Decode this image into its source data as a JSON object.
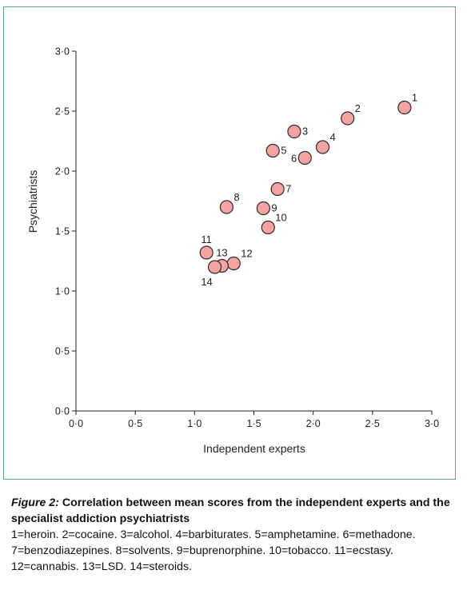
{
  "chart_data": {
    "type": "scatter",
    "xlabel": "Independent experts",
    "ylabel": "Psychiatrists",
    "xlim": [
      0,
      3
    ],
    "ylim": [
      0,
      3
    ],
    "x_ticks": [
      "0·0",
      "0·5",
      "1·0",
      "1·5",
      "2·0",
      "2·5",
      "3·0"
    ],
    "y_ticks": [
      "0·0",
      "0·5",
      "1·0",
      "1·5",
      "2·0",
      "2·5",
      "3·0"
    ],
    "tick_values": [
      0,
      0.5,
      1.0,
      1.5,
      2.0,
      2.5,
      3.0
    ],
    "grid": false,
    "marker_color": "#f4a3a0",
    "marker_edge": "#2b2b2b",
    "points": [
      {
        "label": "1",
        "x": 2.77,
        "y": 2.53,
        "label_pos": "upper-right"
      },
      {
        "label": "2",
        "x": 2.29,
        "y": 2.44,
        "label_pos": "upper-right"
      },
      {
        "label": "3",
        "x": 1.84,
        "y": 2.33,
        "label_pos": "right"
      },
      {
        "label": "4",
        "x": 2.08,
        "y": 2.2,
        "label_pos": "upper-right"
      },
      {
        "label": "5",
        "x": 1.66,
        "y": 2.17,
        "label_pos": "right"
      },
      {
        "label": "6",
        "x": 1.93,
        "y": 2.11,
        "label_pos": "left"
      },
      {
        "label": "7",
        "x": 1.7,
        "y": 1.85,
        "label_pos": "right"
      },
      {
        "label": "8",
        "x": 1.27,
        "y": 1.7,
        "label_pos": "upper-right"
      },
      {
        "label": "9",
        "x": 1.58,
        "y": 1.69,
        "label_pos": "right"
      },
      {
        "label": "10",
        "x": 1.62,
        "y": 1.53,
        "label_pos": "upper-right"
      },
      {
        "label": "11",
        "x": 1.1,
        "y": 1.32,
        "label_pos": "above"
      },
      {
        "label": "12",
        "x": 1.33,
        "y": 1.23,
        "label_pos": "upper-right"
      },
      {
        "label": "13",
        "x": 1.23,
        "y": 1.21,
        "label_pos": "above"
      },
      {
        "label": "14",
        "x": 1.17,
        "y": 1.2,
        "label_pos": "below-left"
      }
    ]
  },
  "caption": {
    "label": "Figure 2:",
    "title": " Correlation between mean scores from the independent experts and the specialist addiction psychiatrists",
    "legend_text": "1=heroin. 2=cocaine. 3=alcohol. 4=barbiturates. 5=amphetamine. 6=methadone. 7=benzodiazepines. 8=solvents. 9=buprenorphine. 10=tobacco. 11=ecstasy. 12=cannabis. 13=LSD. 14=steroids."
  },
  "colors": {
    "frame": "#5aa894",
    "axis": "#222222"
  }
}
